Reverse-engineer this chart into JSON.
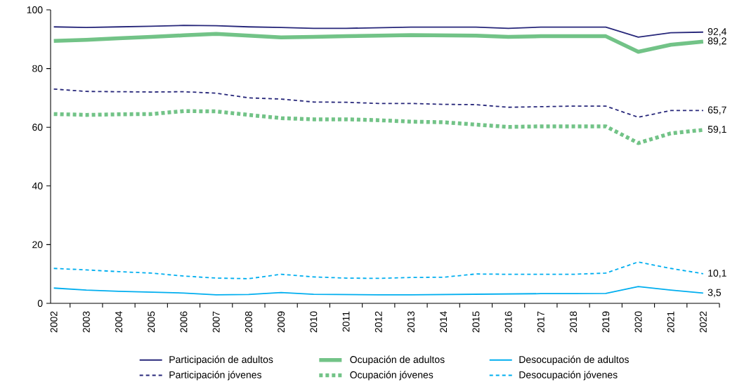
{
  "chart_data": {
    "type": "line",
    "categories": [
      "2002",
      "2003",
      "2004",
      "2005",
      "2006",
      "2007",
      "2008",
      "2009",
      "2010",
      "2011",
      "2012",
      "2013",
      "2014",
      "2015",
      "2016",
      "2017",
      "2018",
      "2019",
      "2020",
      "2021",
      "2022"
    ],
    "ylim": [
      0,
      100
    ],
    "yticks": [
      0,
      20,
      40,
      60,
      80,
      100
    ],
    "grid": false,
    "legend": "bottom",
    "series": [
      {
        "name": "Participación de adultos",
        "color": "#27277a",
        "line_style": "solid",
        "values": [
          94.2,
          94.0,
          94.2,
          94.4,
          94.7,
          94.6,
          94.2,
          94.0,
          93.7,
          93.7,
          93.9,
          94.1,
          94.1,
          94.1,
          93.7,
          94.1,
          94.1,
          94.1,
          90.7,
          92.2,
          92.4
        ]
      },
      {
        "name": "Ocupación de adultos",
        "color": "#72c387",
        "line_style": "solid",
        "values": [
          89.4,
          89.8,
          90.3,
          90.8,
          91.3,
          91.8,
          91.2,
          90.6,
          90.8,
          91.0,
          91.2,
          91.4,
          91.3,
          91.2,
          90.8,
          91.0,
          91.0,
          91.0,
          85.7,
          88.1,
          89.2
        ]
      },
      {
        "name": "Desocupación de adultos",
        "color": "#00aeef",
        "line_style": "solid",
        "values": [
          5.2,
          4.5,
          4.1,
          3.8,
          3.5,
          2.9,
          3.0,
          3.7,
          3.1,
          3.0,
          2.9,
          2.9,
          3.0,
          3.1,
          3.2,
          3.3,
          3.3,
          3.4,
          5.7,
          4.5,
          3.5
        ]
      },
      {
        "name": "Participación jóvenes",
        "color": "#27277a",
        "line_style": "dashed",
        "values": [
          73.0,
          72.2,
          72.1,
          72.0,
          72.1,
          71.6,
          70.0,
          69.6,
          68.6,
          68.5,
          68.1,
          68.1,
          67.8,
          67.7,
          66.8,
          67.0,
          67.2,
          67.2,
          63.4,
          65.7,
          65.7
        ]
      },
      {
        "name": "Ocupación jóvenes",
        "color": "#72c387",
        "line_style": "dotted",
        "values": [
          64.5,
          64.2,
          64.4,
          64.5,
          65.5,
          65.4,
          64.2,
          63.1,
          62.7,
          62.7,
          62.4,
          61.9,
          61.7,
          60.9,
          60.1,
          60.3,
          60.3,
          60.3,
          54.6,
          57.9,
          59.1
        ]
      },
      {
        "name": "Desocupación jóvenes",
        "color": "#00aeef",
        "line_style": "dashed",
        "values": [
          11.9,
          11.4,
          10.8,
          10.3,
          9.3,
          8.6,
          8.4,
          9.9,
          9.0,
          8.6,
          8.5,
          8.8,
          8.9,
          10.0,
          9.9,
          9.9,
          9.9,
          10.3,
          14.1,
          11.9,
          10.1
        ]
      }
    ],
    "annotations": [
      {
        "text": "92,4",
        "x": "2022",
        "y": 92.4
      },
      {
        "text": "89,2",
        "x": "2022",
        "y": 89.2
      },
      {
        "text": "65,7",
        "x": "2022",
        "y": 65.7
      },
      {
        "text": "59,1",
        "x": "2022",
        "y": 59.1
      },
      {
        "text": "10,1",
        "x": "2022",
        "y": 10.1
      },
      {
        "text": "3,5",
        "x": "2022",
        "y": 3.5
      }
    ]
  }
}
